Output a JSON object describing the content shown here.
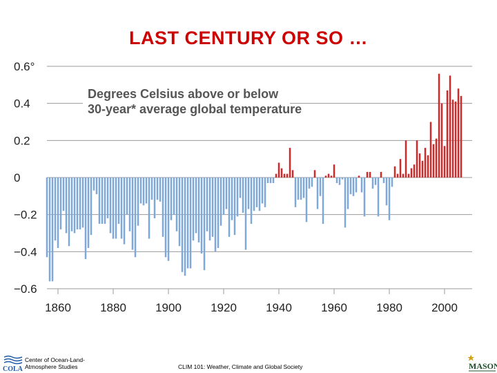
{
  "slide": {
    "title": "LAST CENTURY OR SO …"
  },
  "footer": {
    "org_line1": "Center of Ocean-Land-",
    "org_line2": "Atmosphere Studies",
    "org_logo_text": "COLA",
    "course": "CLIM 101: Weather, Climate and Global Society",
    "right_logo_text": "MASON"
  },
  "colors": {
    "title": "#cc0000",
    "positive_bar": "#d62728",
    "negative_bar": "#7ea8dc",
    "gridline": "#9a9a9a"
  },
  "chart_data": {
    "type": "bar",
    "title_line1": "Degrees Celsius above or below",
    "title_line2": "30-year* average global temperature",
    "xlabel": "",
    "ylabel": "",
    "ylim": [
      -0.6,
      0.6
    ],
    "y_ticks": [
      {
        "value": 0.6,
        "label": "0.6°"
      },
      {
        "value": 0.4,
        "label": "0.4"
      },
      {
        "value": 0.2,
        "label": "0.2"
      },
      {
        "value": 0,
        "label": "0"
      },
      {
        "value": -0.2,
        "label": "−0.2"
      },
      {
        "value": -0.4,
        "label": "−0.4"
      },
      {
        "value": -0.6,
        "label": "−0.6"
      }
    ],
    "x_ticks": [
      1860,
      1880,
      1900,
      1920,
      1940,
      1960,
      1980,
      2000
    ],
    "xlim": [
      1856,
      2010
    ],
    "grid": "horizontal",
    "years": [
      1856,
      1857,
      1858,
      1859,
      1860,
      1861,
      1862,
      1863,
      1864,
      1865,
      1866,
      1867,
      1868,
      1869,
      1870,
      1871,
      1872,
      1873,
      1874,
      1875,
      1876,
      1877,
      1878,
      1879,
      1880,
      1881,
      1882,
      1883,
      1884,
      1885,
      1886,
      1887,
      1888,
      1889,
      1890,
      1891,
      1892,
      1893,
      1894,
      1895,
      1896,
      1897,
      1898,
      1899,
      1900,
      1901,
      1902,
      1903,
      1904,
      1905,
      1906,
      1907,
      1908,
      1909,
      1910,
      1911,
      1912,
      1913,
      1914,
      1915,
      1916,
      1917,
      1918,
      1919,
      1920,
      1921,
      1922,
      1923,
      1924,
      1925,
      1926,
      1927,
      1928,
      1929,
      1930,
      1931,
      1932,
      1933,
      1934,
      1935,
      1936,
      1937,
      1938,
      1939,
      1940,
      1941,
      1942,
      1943,
      1944,
      1945,
      1946,
      1947,
      1948,
      1949,
      1950,
      1951,
      1952,
      1953,
      1954,
      1955,
      1956,
      1957,
      1958,
      1959,
      1960,
      1961,
      1962,
      1963,
      1964,
      1965,
      1966,
      1967,
      1968,
      1969,
      1970,
      1971,
      1972,
      1973,
      1974,
      1975,
      1976,
      1977,
      1978,
      1979,
      1980,
      1981,
      1982,
      1983,
      1984,
      1985,
      1986,
      1987,
      1988,
      1989,
      1990,
      1991,
      1992,
      1993,
      1994,
      1995,
      1996,
      1997,
      1998,
      1999,
      2000,
      2001,
      2002,
      2003,
      2004,
      2005,
      2006
    ],
    "values": [
      -0.43,
      -0.56,
      -0.56,
      -0.34,
      -0.38,
      -0.28,
      -0.18,
      -0.3,
      -0.37,
      -0.29,
      -0.3,
      -0.28,
      -0.28,
      -0.27,
      -0.44,
      -0.38,
      -0.31,
      -0.07,
      -0.09,
      -0.25,
      -0.25,
      -0.25,
      -0.22,
      -0.3,
      -0.33,
      -0.33,
      -0.25,
      -0.33,
      -0.36,
      -0.2,
      -0.29,
      -0.39,
      -0.43,
      -0.26,
      -0.14,
      -0.15,
      -0.14,
      -0.33,
      -0.12,
      -0.22,
      -0.12,
      -0.13,
      -0.32,
      -0.43,
      -0.45,
      -0.23,
      -0.2,
      -0.29,
      -0.37,
      -0.51,
      -0.53,
      -0.49,
      -0.49,
      -0.34,
      -0.3,
      -0.35,
      -0.41,
      -0.5,
      -0.29,
      -0.34,
      -0.32,
      -0.4,
      -0.38,
      -0.26,
      -0.2,
      -0.17,
      -0.32,
      -0.23,
      -0.31,
      -0.21,
      -0.11,
      -0.19,
      -0.39,
      -0.17,
      -0.25,
      -0.18,
      -0.16,
      -0.18,
      -0.14,
      -0.16,
      -0.03,
      -0.03,
      -0.03,
      0.02,
      0.08,
      0.05,
      0.02,
      0.02,
      0.16,
      0.04,
      -0.16,
      -0.12,
      -0.12,
      -0.11,
      -0.24,
      -0.06,
      -0.05,
      0.04,
      -0.17,
      -0.1,
      -0.25,
      0.01,
      0.02,
      0.01,
      0.07,
      -0.03,
      -0.04,
      -0.01,
      -0.27,
      -0.17,
      -0.09,
      -0.1,
      -0.08,
      0.01,
      -0.08,
      -0.21,
      0.03,
      0.03,
      -0.06,
      -0.04,
      -0.21,
      0.03,
      -0.03,
      -0.15,
      -0.23,
      -0.05,
      0.06,
      0.02,
      0.1,
      0.02,
      0.2,
      0.02,
      0.05,
      0.07,
      0.2,
      0.13,
      0.09,
      0.16,
      0.12,
      0.3,
      0.18,
      0.21,
      0.56,
      0.4,
      0.17,
      0.47,
      0.55,
      0.42,
      0.41,
      0.48,
      0.44
    ]
  }
}
